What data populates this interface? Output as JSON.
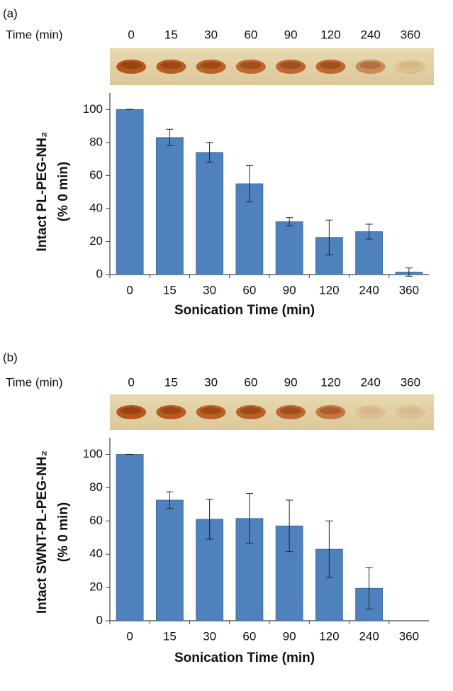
{
  "chart_data": [
    {
      "type": "bar",
      "panel_label": "(a)",
      "gel_header": "Time (min)",
      "gel_lanes": [
        "0",
        "15",
        "30",
        "60",
        "90",
        "120",
        "240",
        "360"
      ],
      "categories": [
        "0",
        "15",
        "30",
        "60",
        "90",
        "120",
        "240",
        "360"
      ],
      "values": [
        100,
        83,
        74,
        55,
        32,
        22.5,
        26,
        1.5
      ],
      "errors": [
        0,
        5,
        6,
        11,
        2.5,
        10.5,
        4.5,
        2.5
      ],
      "color": "#4f81bd",
      "ylabel": [
        "Intact PL-PEG-NH₂",
        "(% 0 min)"
      ],
      "xlabel": "Sonication Time (min)",
      "ylim": [
        0,
        110
      ],
      "yticks": [
        0,
        20,
        40,
        60,
        80,
        100
      ]
    },
    {
      "type": "bar",
      "panel_label": "(b)",
      "gel_header": "Time (min)",
      "gel_lanes": [
        "0",
        "15",
        "30",
        "60",
        "90",
        "120",
        "240",
        "360"
      ],
      "categories": [
        "0",
        "15",
        "30",
        "60",
        "90",
        "120",
        "240",
        "360"
      ],
      "values": [
        100,
        72.5,
        61,
        61.5,
        57,
        43,
        19.5,
        null
      ],
      "errors": [
        0,
        5,
        12,
        15,
        15.5,
        17,
        12.5,
        null
      ],
      "color": "#4f81bd",
      "ylabel": [
        "Intact SWNT-PL-PEG-NH₂",
        "(% 0 min)"
      ],
      "xlabel": "Sonication Time (min)",
      "ylim": [
        0,
        110
      ],
      "yticks": [
        0,
        20,
        40,
        60,
        80,
        100
      ]
    }
  ]
}
